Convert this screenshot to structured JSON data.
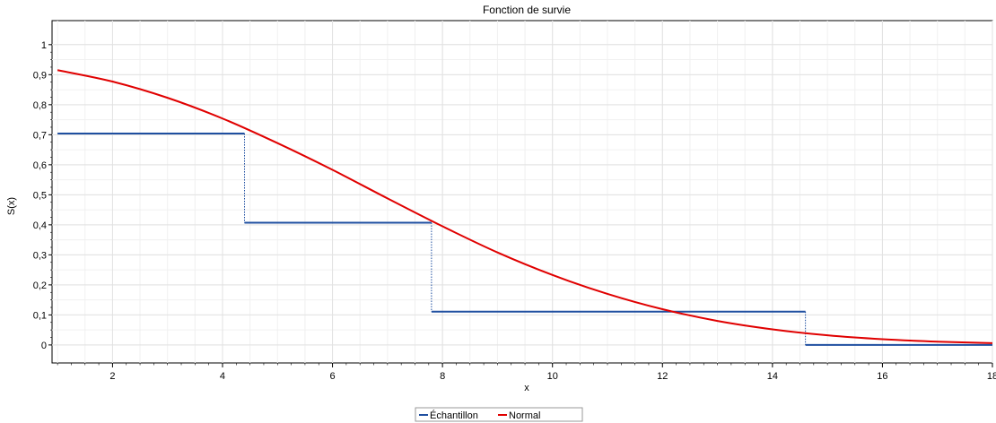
{
  "chart_data": {
    "type": "line",
    "title": "Fonction de survie",
    "xlabel": "x",
    "ylabel": "S(x)",
    "xlim": [
      0.9,
      18
    ],
    "ylim": [
      -0.06,
      1.08
    ],
    "xticks": [
      2,
      4,
      6,
      8,
      10,
      12,
      14,
      16,
      18
    ],
    "yticks": [
      0,
      0.1,
      0.2,
      0.3,
      0.4,
      0.5,
      0.6,
      0.7,
      0.8,
      0.9,
      1
    ],
    "ytick_labels": [
      "0",
      "0,1",
      "0,2",
      "0,3",
      "0,4",
      "0,5",
      "0,6",
      "0,7",
      "0,8",
      "0,9",
      "1"
    ],
    "xtick_labels": [
      "2",
      "4",
      "6",
      "8",
      "10",
      "12",
      "14",
      "16",
      "18"
    ],
    "grid": true,
    "legend_position": "bottom-center",
    "series": [
      {
        "name": "Échantillon",
        "color": "#1f4fa0",
        "style": "step",
        "x": [
          1.0,
          4.4,
          4.4,
          7.8,
          7.8,
          14.6,
          14.6,
          18.0
        ],
        "y": [
          0.704,
          0.704,
          0.407,
          0.407,
          0.111,
          0.111,
          0.0,
          0.0
        ]
      },
      {
        "name": "Normal",
        "color": "#e00000",
        "style": "line",
        "x": [
          1,
          2,
          3,
          4,
          5,
          6,
          7,
          8,
          9,
          10,
          11,
          12,
          13,
          14,
          15,
          16,
          17,
          18
        ],
        "y": [
          0.915,
          0.877,
          0.823,
          0.754,
          0.672,
          0.583,
          0.488,
          0.395,
          0.308,
          0.233,
          0.17,
          0.119,
          0.08,
          0.052,
          0.032,
          0.019,
          0.011,
          0.006
        ]
      }
    ]
  }
}
